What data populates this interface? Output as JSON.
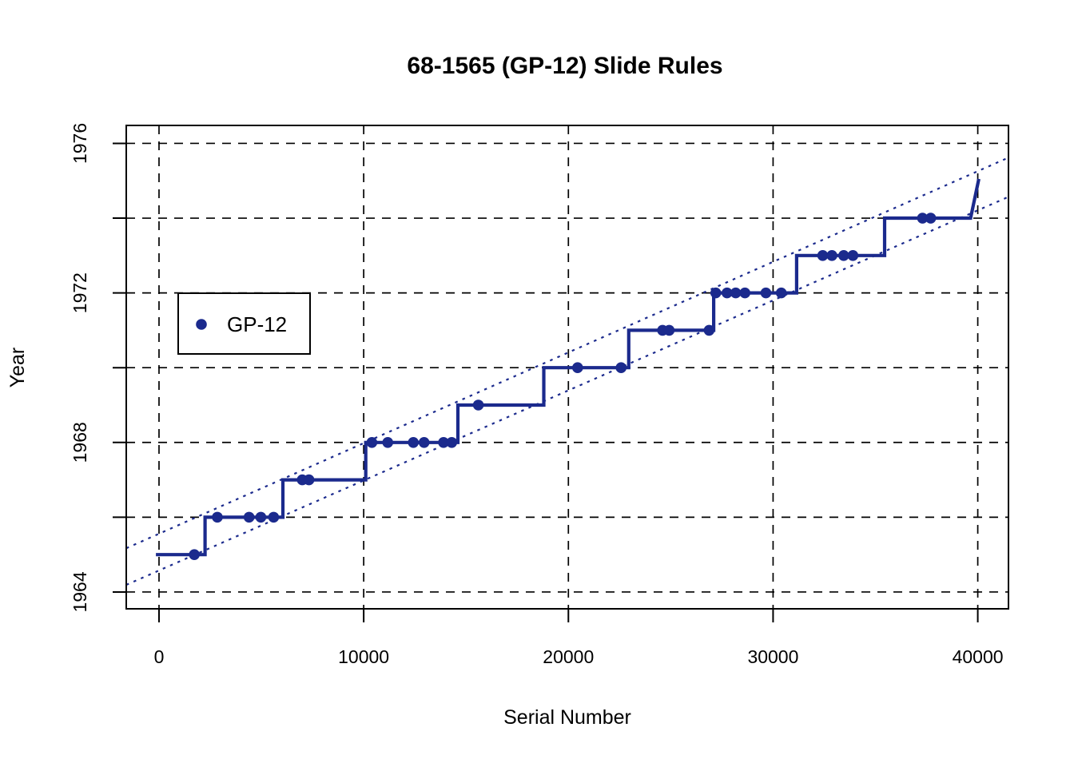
{
  "title": "68-1565 (GP-12) Slide Rules",
  "x_axis": {
    "label": "Serial Number"
  },
  "y_axis": {
    "label": "Year"
  },
  "legend": {
    "label": "GP-12",
    "marker": "filled-circle"
  },
  "colors": {
    "series": "#1b2a8d",
    "grid": "#000000",
    "frame": "#000000",
    "background": "#ffffff"
  },
  "chart_data": {
    "type": "line",
    "subtype": "step-function-with-scatter-points",
    "title": "68-1565 (GP-12) Slide Rules",
    "xlabel": "Serial Number",
    "ylabel": "Year",
    "xlim": [
      -1600,
      41500
    ],
    "ylim": [
      1963.55,
      1976.48
    ],
    "grid": true,
    "legend_position": "upper-left-inside",
    "x_ticks": [
      {
        "v": 0,
        "label": "0"
      },
      {
        "v": 10000,
        "label": "10000"
      },
      {
        "v": 20000,
        "label": "20000"
      },
      {
        "v": 30000,
        "label": "30000"
      },
      {
        "v": 40000,
        "label": "40000"
      }
    ],
    "y_ticks": [
      {
        "v": 1964,
        "label": "1964"
      },
      {
        "v": 1966,
        "label": ""
      },
      {
        "v": 1968,
        "label": "1968"
      },
      {
        "v": 1970,
        "label": ""
      },
      {
        "v": 1972,
        "label": "1972"
      },
      {
        "v": 1974,
        "label": ""
      },
      {
        "v": 1976,
        "label": "1976"
      }
    ],
    "series": [
      {
        "name": "GP-12",
        "style": "step-line-with-points",
        "step_vertices": [
          [
            -150,
            1965
          ],
          [
            2250,
            1965
          ],
          [
            2250,
            1966
          ],
          [
            6050,
            1966
          ],
          [
            6050,
            1967
          ],
          [
            10100,
            1967
          ],
          [
            10100,
            1968
          ],
          [
            14600,
            1968
          ],
          [
            14600,
            1969
          ],
          [
            18800,
            1969
          ],
          [
            18800,
            1970
          ],
          [
            22950,
            1970
          ],
          [
            22950,
            1971
          ],
          [
            27100,
            1971
          ],
          [
            27100,
            1972
          ],
          [
            31150,
            1972
          ],
          [
            31150,
            1973
          ],
          [
            35450,
            1973
          ],
          [
            35450,
            1974
          ],
          [
            39650,
            1974
          ],
          [
            40050,
            1975.05
          ]
        ],
        "points": [
          [
            1725,
            1965
          ],
          [
            2850,
            1966
          ],
          [
            4400,
            1966
          ],
          [
            4975,
            1966
          ],
          [
            5600,
            1966
          ],
          [
            7000,
            1967
          ],
          [
            7325,
            1967
          ],
          [
            10400,
            1968
          ],
          [
            11175,
            1968
          ],
          [
            12425,
            1968
          ],
          [
            12950,
            1968
          ],
          [
            13900,
            1968
          ],
          [
            14300,
            1968
          ],
          [
            15600,
            1969
          ],
          [
            20450,
            1970
          ],
          [
            22575,
            1970
          ],
          [
            24600,
            1971
          ],
          [
            24925,
            1971
          ],
          [
            26875,
            1971
          ],
          [
            27200,
            1972
          ],
          [
            27750,
            1972
          ],
          [
            28175,
            1972
          ],
          [
            28625,
            1972
          ],
          [
            29650,
            1972
          ],
          [
            30400,
            1972
          ],
          [
            32425,
            1973
          ],
          [
            32875,
            1973
          ],
          [
            33450,
            1973
          ],
          [
            33900,
            1973
          ],
          [
            37300,
            1974
          ],
          [
            37700,
            1974
          ]
        ]
      }
    ],
    "reference_lines": [
      {
        "name": "upper-date-estimate",
        "style": "dotted",
        "points": [
          [
            -1600,
            1965.17
          ],
          [
            41500,
            1975.62
          ]
        ]
      },
      {
        "name": "lower-date-estimate",
        "style": "dotted",
        "points": [
          [
            -1600,
            1964.19
          ],
          [
            41500,
            1974.57
          ]
        ]
      }
    ]
  }
}
